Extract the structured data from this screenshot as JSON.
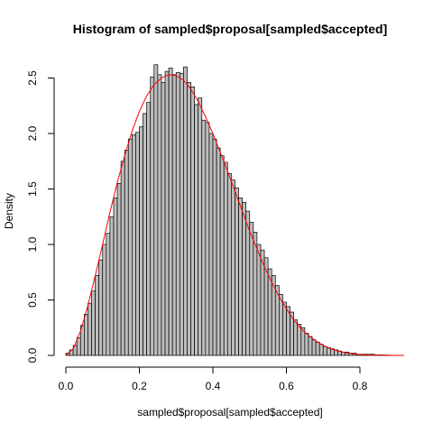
{
  "chart_data": {
    "type": "bar",
    "title": "Histogram of sampled$proposal[sampled$accepted]",
    "xlabel": "sampled$proposal[sampled$accepted]",
    "ylabel": "Density",
    "bar_color": "#bebebe",
    "curve_color": "#ff0000",
    "bin_width": 0.01,
    "x_start": 0.0,
    "xlim": [
      0.0,
      0.92
    ],
    "ylim": [
      0.0,
      2.6
    ],
    "x_ticks": [
      "0.0",
      "0.2",
      "0.4",
      "0.6",
      "0.8"
    ],
    "x_tick_values": [
      0.0,
      0.2,
      0.4,
      0.6,
      0.8
    ],
    "y_ticks": [
      "0.0",
      "0.5",
      "1.0",
      "1.5",
      "2.0",
      "2.5"
    ],
    "y_tick_values": [
      0.0,
      0.5,
      1.0,
      1.5,
      2.0,
      2.5
    ],
    "values": [
      0.02,
      0.05,
      0.09,
      0.16,
      0.27,
      0.37,
      0.47,
      0.58,
      0.72,
      0.86,
      1.0,
      1.1,
      1.25,
      1.42,
      1.55,
      1.75,
      1.85,
      1.95,
      1.99,
      2.01,
      2.06,
      2.18,
      2.28,
      2.51,
      2.62,
      2.53,
      2.46,
      2.56,
      2.59,
      2.53,
      2.55,
      2.54,
      2.6,
      2.46,
      2.42,
      2.26,
      2.32,
      2.12,
      2.1,
      2.0,
      1.95,
      1.87,
      1.8,
      1.74,
      1.64,
      1.58,
      1.51,
      1.42,
      1.38,
      1.3,
      1.2,
      1.11,
      1.0,
      0.95,
      0.88,
      0.78,
      0.72,
      0.63,
      0.55,
      0.48,
      0.44,
      0.39,
      0.32,
      0.28,
      0.25,
      0.2,
      0.17,
      0.14,
      0.12,
      0.1,
      0.08,
      0.07,
      0.06,
      0.05,
      0.04,
      0.03,
      0.03,
      0.02,
      0.02,
      0.01,
      0.01,
      0.01,
      0.01,
      0.01,
      0.005,
      0.005,
      0.004,
      0.003,
      0.002
    ],
    "curve": {
      "x": [
        0.0,
        0.02,
        0.04,
        0.06,
        0.08,
        0.1,
        0.12,
        0.14,
        0.16,
        0.18,
        0.2,
        0.22,
        0.24,
        0.26,
        0.28,
        0.3,
        0.32,
        0.34,
        0.36,
        0.38,
        0.4,
        0.42,
        0.44,
        0.46,
        0.48,
        0.5,
        0.52,
        0.54,
        0.56,
        0.58,
        0.6,
        0.62,
        0.64,
        0.66,
        0.68,
        0.7,
        0.72,
        0.74,
        0.76,
        0.78,
        0.8,
        0.82,
        0.84,
        0.86,
        0.88,
        0.9,
        0.92
      ],
      "y": [
        0.0,
        0.06,
        0.22,
        0.45,
        0.72,
        1.0,
        1.29,
        1.56,
        1.8,
        2.02,
        2.2,
        2.34,
        2.44,
        2.5,
        2.53,
        2.52,
        2.48,
        2.4,
        2.29,
        2.15,
        2.0,
        1.83,
        1.66,
        1.48,
        1.3,
        1.12,
        0.96,
        0.8,
        0.66,
        0.53,
        0.42,
        0.32,
        0.24,
        0.18,
        0.13,
        0.09,
        0.06,
        0.04,
        0.025,
        0.015,
        0.008,
        0.004,
        0.002,
        0.001,
        0.0005,
        0.0002,
        0.0
      ]
    }
  }
}
